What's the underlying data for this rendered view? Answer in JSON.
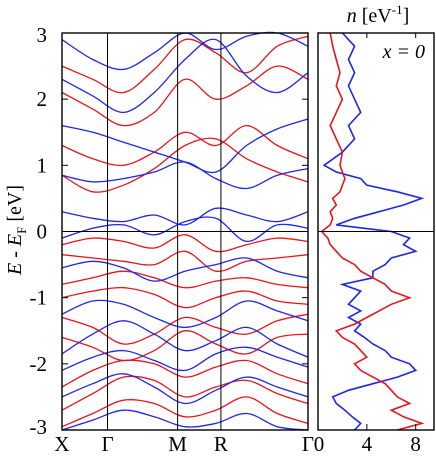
{
  "chart_data": [
    {
      "type": "line",
      "ylabel_main": "E - E",
      "ylabel_sub": "F",
      "ylabel_unit": " [eV]",
      "ylim": [
        -3,
        3
      ],
      "yticks": [
        "-3",
        "-2",
        "-1",
        "0",
        "1",
        "2",
        "3"
      ],
      "kpoints": [
        "X",
        "Γ",
        "M",
        "R",
        "Γ"
      ],
      "kpoint_pos": [
        0,
        0.185,
        0.47,
        0.646,
        1.0
      ],
      "fermi_level": 0,
      "colors": {
        "spin_up": "#e8141c",
        "spin_down": "#1d26e6"
      },
      "series": [
        {
          "color": "red",
          "bands": [
            [
              -2.95,
              -2.75,
              -2.55,
              -2.6,
              -2.8,
              -2.7,
              -2.5,
              -2.75,
              -2.9
            ],
            [
              -2.7,
              -2.45,
              -2.2,
              -2.25,
              -2.5,
              -2.35,
              -2.25,
              -2.45,
              -2.6
            ],
            [
              -2.35,
              -2.1,
              -1.95,
              -2.0,
              -2.2,
              -2.05,
              -1.95,
              -2.15,
              -2.3
            ],
            [
              -1.6,
              -1.75,
              -1.95,
              -1.8,
              -1.5,
              -1.7,
              -1.85,
              -1.6,
              -1.55
            ],
            [
              -1.3,
              -1.45,
              -1.7,
              -1.55,
              -1.3,
              -1.45,
              -1.55,
              -1.35,
              -1.25
            ],
            [
              -1.0,
              -0.9,
              -0.85,
              -0.95,
              -1.15,
              -1.0,
              -0.9,
              -1.05,
              -1.1
            ],
            [
              -0.8,
              -0.7,
              -0.6,
              -0.7,
              -0.85,
              -0.75,
              -0.7,
              -0.8,
              -0.85
            ],
            [
              -0.35,
              -0.4,
              -0.45,
              -0.5,
              -0.3,
              -0.6,
              -0.45,
              -0.4,
              -0.35
            ],
            [
              -0.2,
              -0.1,
              -0.15,
              -0.25,
              -0.05,
              -0.3,
              -0.2,
              -0.1,
              -0.15
            ],
            [
              0.85,
              0.6,
              0.7,
              0.95,
              1.3,
              1.4,
              1.1,
              0.9,
              0.75
            ],
            [
              1.3,
              1.1,
              1.0,
              1.2,
              1.5,
              1.3,
              1.6,
              1.3,
              1.1
            ],
            [
              2.1,
              1.85,
              1.6,
              1.8,
              2.3,
              2.0,
              2.2,
              2.5,
              2.3
            ],
            [
              2.5,
              2.3,
              2.1,
              2.45,
              2.9,
              2.7,
              2.4,
              2.8,
              2.95
            ]
          ]
        },
        {
          "color": "blue",
          "bands": [
            [
              -3.0,
              -2.85,
              -2.7,
              -2.8,
              -2.95,
              -2.9,
              -2.75,
              -2.95,
              -3.0
            ],
            [
              -2.5,
              -2.3,
              -2.15,
              -2.35,
              -2.6,
              -2.4,
              -2.2,
              -2.35,
              -2.5
            ],
            [
              -2.1,
              -1.9,
              -1.8,
              -1.95,
              -2.1,
              -1.85,
              -1.75,
              -1.9,
              -2.05
            ],
            [
              -1.85,
              -1.55,
              -1.35,
              -1.55,
              -1.8,
              -1.65,
              -1.45,
              -1.7,
              -1.9
            ],
            [
              -1.25,
              -1.05,
              -1.1,
              -1.3,
              -1.45,
              -1.3,
              -1.05,
              -1.2,
              -1.35
            ],
            [
              -0.55,
              -0.45,
              -0.55,
              -0.75,
              -0.6,
              -0.5,
              -0.4,
              -0.6,
              -0.7
            ],
            [
              -0.1,
              0.05,
              0.1,
              -0.05,
              0.15,
              0.2,
              -0.15,
              0.1,
              0.05
            ],
            [
              0.3,
              0.2,
              0.15,
              0.25,
              0.1,
              0.35,
              0.25,
              0.15,
              0.3
            ],
            [
              0.85,
              0.75,
              0.8,
              0.9,
              1.05,
              0.8,
              0.65,
              0.85,
              0.95
            ],
            [
              1.6,
              1.5,
              1.35,
              1.2,
              1.05,
              0.9,
              1.3,
              1.55,
              1.7
            ],
            [
              2.3,
              2.05,
              1.8,
              2.1,
              2.6,
              2.9,
              2.35,
              2.1,
              2.4
            ],
            [
              2.9,
              2.6,
              2.45,
              2.7,
              3.0,
              2.75,
              2.95,
              3.0,
              2.8
            ]
          ]
        }
      ]
    },
    {
      "type": "line",
      "title_main": "n",
      "title_unit": " [eV",
      "title_sup": "-1",
      "title_end": "]",
      "annotation": "x = 0",
      "xlim": [
        0,
        9.5
      ],
      "xticks": [
        "0",
        "4",
        "8"
      ],
      "xtick_values": [
        0,
        4,
        8
      ],
      "ylim": [
        -3,
        3
      ],
      "fermi_level": 0,
      "series": [
        {
          "color": "blue",
          "E": [
            -3.0,
            -2.9,
            -2.8,
            -2.7,
            -2.6,
            -2.5,
            -2.4,
            -2.3,
            -2.2,
            -2.1,
            -2.0,
            -1.9,
            -1.8,
            -1.7,
            -1.6,
            -1.5,
            -1.4,
            -1.3,
            -1.2,
            -1.1,
            -1.0,
            -0.9,
            -0.8,
            -0.7,
            -0.6,
            -0.5,
            -0.4,
            -0.3,
            -0.2,
            -0.1,
            0.0,
            0.1,
            0.2,
            0.3,
            0.4,
            0.5,
            0.6,
            0.7,
            0.8,
            0.9,
            1.0,
            1.2,
            1.4,
            1.6,
            1.8,
            2.0,
            2.2,
            2.4,
            2.6,
            2.8,
            3.0
          ],
          "n": [
            3.0,
            3.5,
            2.8,
            2.2,
            1.5,
            1.2,
            2.5,
            4.5,
            6.5,
            8.0,
            7.5,
            6.0,
            5.5,
            4.5,
            3.8,
            3.0,
            3.5,
            2.5,
            3.5,
            2.5,
            3.0,
            3.5,
            2.0,
            4.5,
            4.5,
            5.5,
            6.0,
            8.0,
            7.0,
            7.5,
            6.0,
            1.5,
            3.0,
            5.0,
            7.0,
            8.5,
            6.5,
            4.0,
            3.5,
            1.5,
            0.5,
            2.0,
            3.0,
            2.5,
            3.5,
            3.0,
            2.5,
            3.0,
            2.5,
            3.0,
            2.0
          ]
        },
        {
          "color": "red",
          "E": [
            -3.0,
            -2.9,
            -2.8,
            -2.7,
            -2.6,
            -2.5,
            -2.4,
            -2.3,
            -2.2,
            -2.1,
            -2.0,
            -1.9,
            -1.8,
            -1.7,
            -1.6,
            -1.5,
            -1.4,
            -1.3,
            -1.2,
            -1.1,
            -1.0,
            -0.9,
            -0.8,
            -0.7,
            -0.6,
            -0.5,
            -0.4,
            -0.3,
            -0.2,
            -0.1,
            0.0,
            0.1,
            0.2,
            0.3,
            0.4,
            0.5,
            0.6,
            0.7,
            0.8,
            0.9,
            1.0,
            1.2,
            1.4,
            1.6,
            1.8,
            2.0,
            2.2,
            2.4,
            2.6,
            2.8,
            3.0
          ],
          "n": [
            6.5,
            8.5,
            7.0,
            6.0,
            7.5,
            6.5,
            6.0,
            5.5,
            4.5,
            3.5,
            3.0,
            4.0,
            3.5,
            3.0,
            2.0,
            1.5,
            3.0,
            4.0,
            5.0,
            6.0,
            7.5,
            6.0,
            5.5,
            4.5,
            3.5,
            3.0,
            2.0,
            1.5,
            1.0,
            0.8,
            0.3,
            1.0,
            1.2,
            1.0,
            1.5,
            1.2,
            1.8,
            2.0,
            2.2,
            2.0,
            1.8,
            2.0,
            1.5,
            1.0,
            1.5,
            2.0,
            1.5,
            1.8,
            1.5,
            1.2,
            1.0
          ]
        }
      ]
    }
  ]
}
